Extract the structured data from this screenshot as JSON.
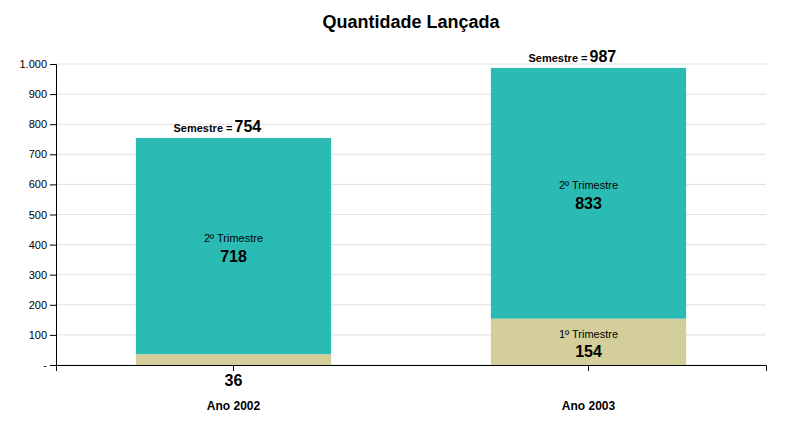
{
  "chart_data": {
    "type": "bar",
    "title": "Quantidade Lançada",
    "categories": [
      "Ano 2002",
      "Ano 2003"
    ],
    "series": [
      {
        "name": "1º Trimestre",
        "color": "#d4cf9a",
        "values": [
          36,
          154
        ]
      },
      {
        "name": "2º Trimestre",
        "color": "#2abcb4",
        "values": [
          718,
          833
        ]
      }
    ],
    "stacked": true,
    "data_labels": true,
    "totals_label": "Semestre = ",
    "totals": [
      754,
      987
    ],
    "ylim": [
      0,
      1000
    ],
    "yticks": [
      {
        "value": 0,
        "label": "-"
      },
      100,
      200,
      300,
      400,
      500,
      600,
      700,
      800,
      900,
      {
        "value": 1000,
        "label": "1.000"
      }
    ],
    "grid": true
  }
}
